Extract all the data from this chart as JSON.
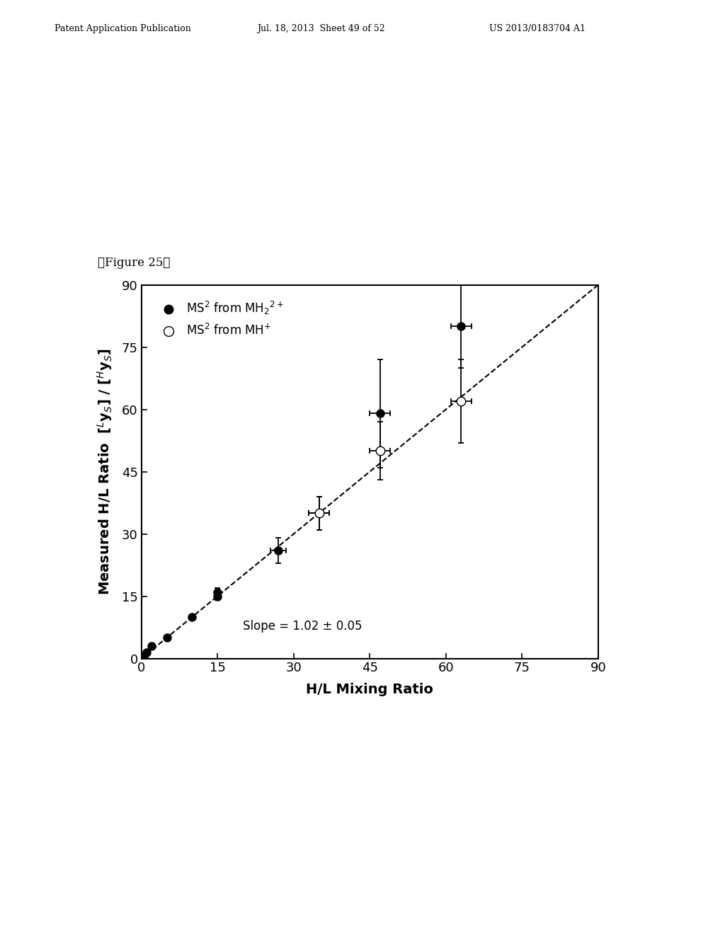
{
  "figure_label": "【Figure 25】",
  "xlabel": "H/L Mixing Ratio",
  "ylabel": "Measured H/L Ratio  [$^{L}$y$_{S}$] / [$^{H}$y$_{S}$]",
  "xlim": [
    0,
    90
  ],
  "ylim": [
    0,
    90
  ],
  "xticks": [
    0,
    15,
    30,
    45,
    60,
    75,
    90
  ],
  "yticks": [
    0,
    15,
    30,
    45,
    60,
    75,
    90
  ],
  "slope_text": "Slope = 1.02 ± 0.05",
  "filled_series": {
    "label": "MS$^{2}$ from MH$_{2}$$^{2+}$",
    "x": [
      0,
      0.5,
      1,
      2,
      5,
      10,
      15,
      15,
      27,
      35,
      47,
      63
    ],
    "y": [
      0,
      0.5,
      1.5,
      3,
      5,
      10,
      16,
      15,
      26,
      35,
      59,
      80
    ],
    "xerr": [
      0,
      0,
      0,
      0,
      0,
      0,
      0.5,
      0.5,
      1.5,
      2,
      2,
      2
    ],
    "yerr": [
      0,
      0,
      0,
      0,
      0,
      0.5,
      1,
      1,
      3,
      4,
      13,
      10
    ]
  },
  "open_series": {
    "label": "MS$^{2}$ from MH$^{+}$",
    "x": [
      35,
      47,
      63
    ],
    "y": [
      35,
      50,
      62
    ],
    "xerr": [
      2,
      2,
      2
    ],
    "yerr": [
      4,
      7,
      10
    ]
  },
  "dashed_line": {
    "x": [
      -5,
      92
    ],
    "y": [
      -5,
      92
    ]
  },
  "background_color": "#ffffff",
  "marker_size": 8,
  "font_size": 14,
  "tick_font_size": 13,
  "header_left": "Patent Application Publication",
  "header_mid": "Jul. 18, 2013  Sheet 49 of 52",
  "header_right": "US 2013/0183704 A1"
}
